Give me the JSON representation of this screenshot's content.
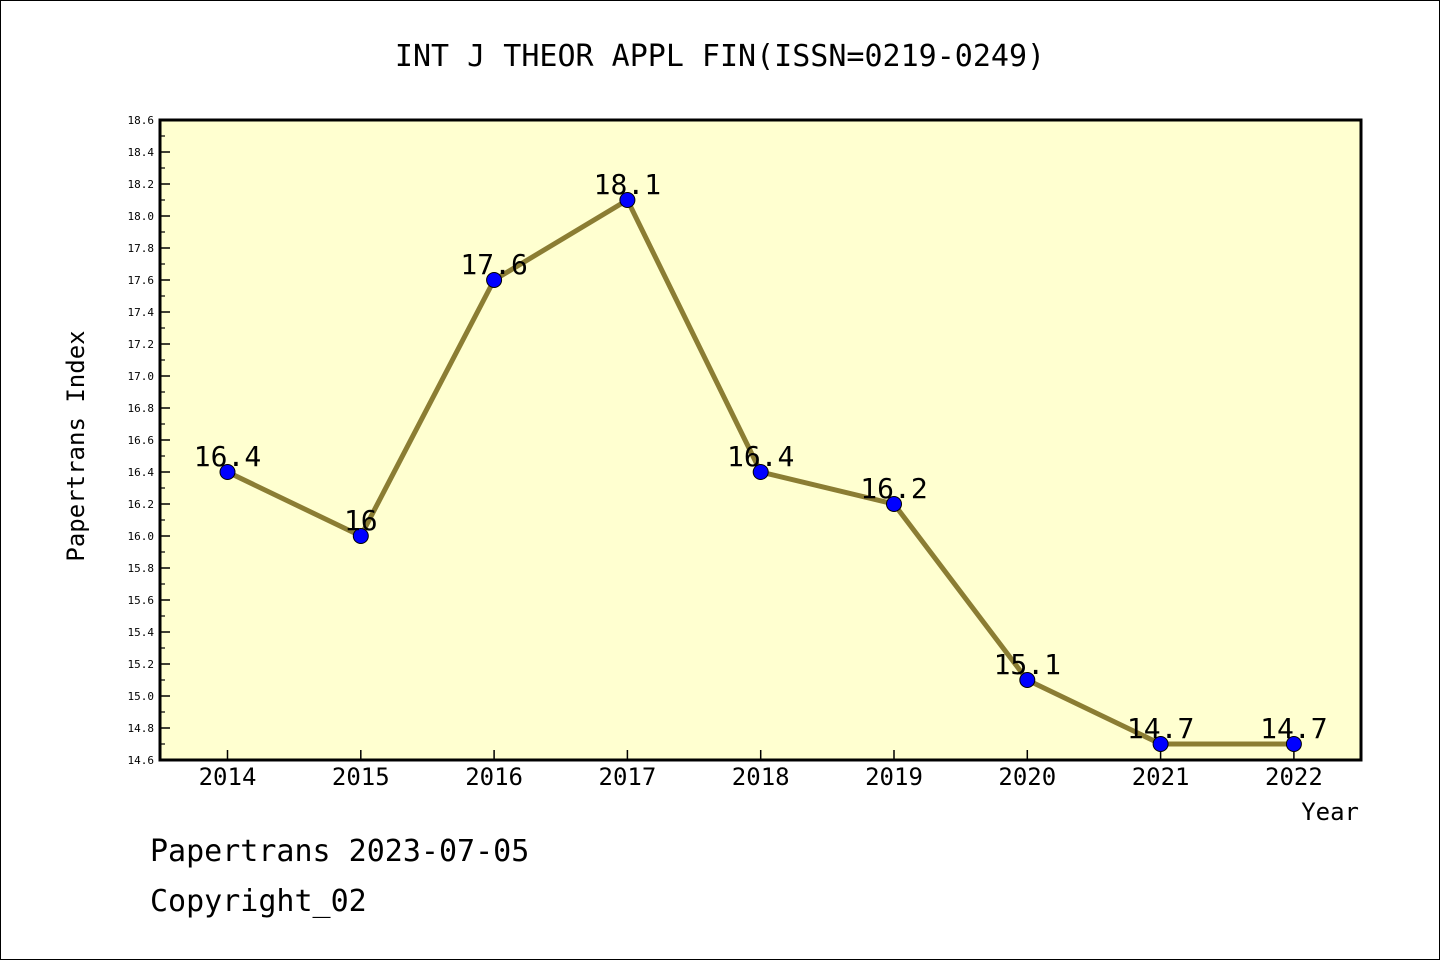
{
  "chart_data": {
    "type": "line",
    "title": "INT J THEOR APPL FIN(ISSN=0219-0249)",
    "xlabel": "Year",
    "ylabel": "Papertrans Index",
    "categories": [
      "2014",
      "2015",
      "2016",
      "2017",
      "2018",
      "2019",
      "2020",
      "2021",
      "2022"
    ],
    "series": [
      {
        "values": [
          16.4,
          16.0,
          17.6,
          18.1,
          16.4,
          16.2,
          15.1,
          14.7,
          14.7
        ],
        "labels": [
          "16.4",
          "16",
          "17.6",
          "18.1",
          "16.4",
          "16.2",
          "15.1",
          "14.7",
          "14.7"
        ]
      }
    ],
    "ylim": [
      14.6,
      18.6
    ],
    "yticks": [
      "14.6",
      "14.8",
      "15.0",
      "15.2",
      "15.4",
      "15.6",
      "15.8",
      "16.0",
      "16.2",
      "16.4",
      "16.6",
      "16.8",
      "17.0",
      "17.2",
      "17.4",
      "17.6",
      "17.8",
      "18.0",
      "18.2",
      "18.4",
      "18.6"
    ],
    "grid": false,
    "colors": {
      "plot_bg": "#ffffd0",
      "line": "#8b7d33",
      "marker": "#0000ff"
    }
  },
  "footer": {
    "line1": "Papertrans 2023-07-05",
    "line2": "Copyright_02"
  }
}
